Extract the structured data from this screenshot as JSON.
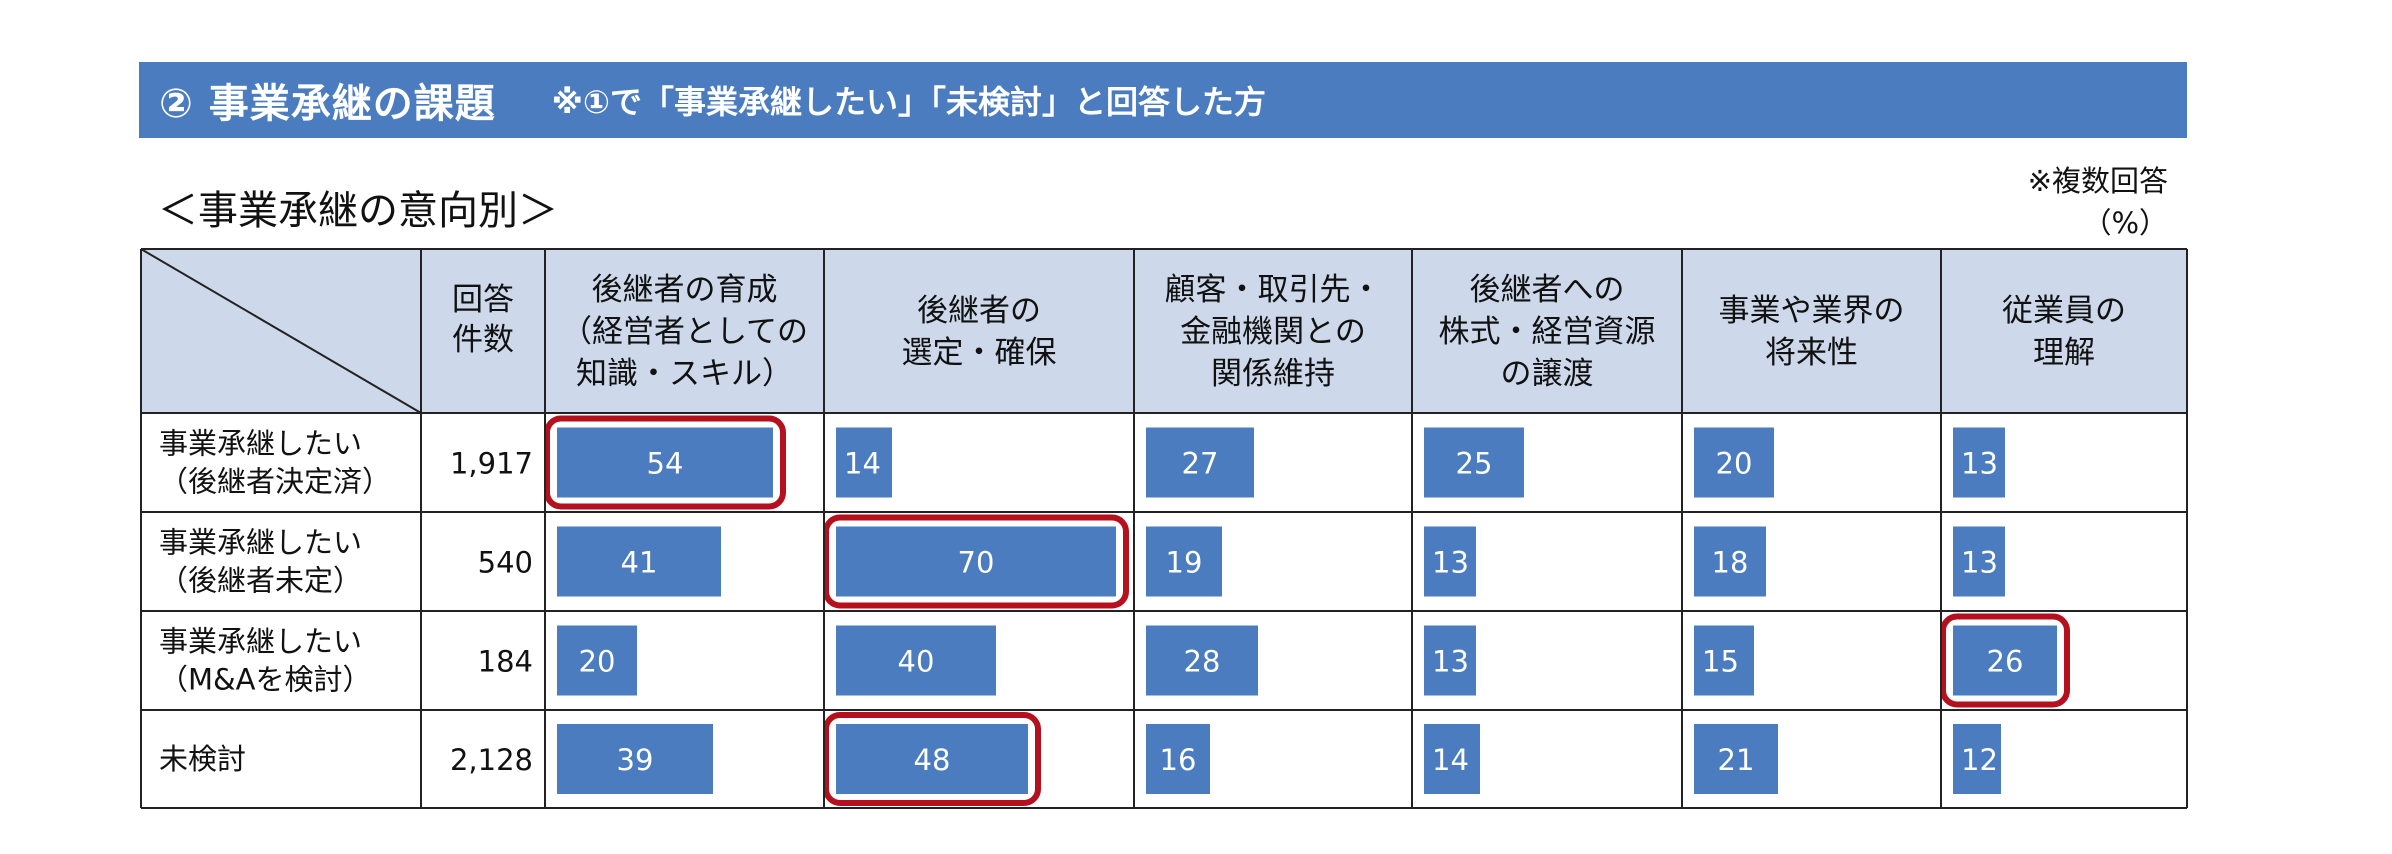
{
  "header": {
    "title": "② 事業承継の課題",
    "note": "※①で「事業承継したい」「未検討」と回答した方"
  },
  "subtitle": "＜事業承継の意向別＞",
  "notes": {
    "multiple": "※複数回答",
    "unit": "（%）"
  },
  "chart_data": {
    "type": "table",
    "count_header": [
      "回答",
      "件数"
    ],
    "columns": [
      {
        "lines": [
          "後継者の育成",
          "（経営者としての",
          "知識・スキル）"
        ]
      },
      {
        "lines": [
          "後継者の",
          "選定・確保"
        ]
      },
      {
        "lines": [
          "顧客・取引先・",
          "金融機関との",
          "関係維持"
        ]
      },
      {
        "lines": [
          "後継者への",
          "株式・経営資源",
          "の譲渡"
        ]
      },
      {
        "lines": [
          "事業や業界の",
          "将来性"
        ]
      },
      {
        "lines": [
          "従業員の",
          "理解"
        ]
      }
    ],
    "rows": [
      {
        "lines": [
          "事業承継したい",
          "（後継者決定済）"
        ],
        "count": "1,917",
        "values": [
          54,
          14,
          27,
          25,
          20,
          13
        ],
        "highlight": [
          0
        ]
      },
      {
        "lines": [
          "事業承継したい",
          "（後継者未定）"
        ],
        "count": "540",
        "values": [
          41,
          70,
          19,
          13,
          18,
          13
        ],
        "highlight": [
          1
        ]
      },
      {
        "lines": [
          "事業承継したい",
          "（M&Aを検討）"
        ],
        "count": "184",
        "values": [
          20,
          40,
          28,
          13,
          15,
          26
        ],
        "highlight": [
          5
        ]
      },
      {
        "lines": [
          "未検討"
        ],
        "count": "2,128",
        "values": [
          39,
          48,
          16,
          14,
          21,
          12
        ],
        "highlight": [
          1
        ]
      }
    ],
    "bar_color": "#4a7cbf",
    "highlight_color": "#b5101e",
    "header_fill": "#cdd9ea"
  }
}
